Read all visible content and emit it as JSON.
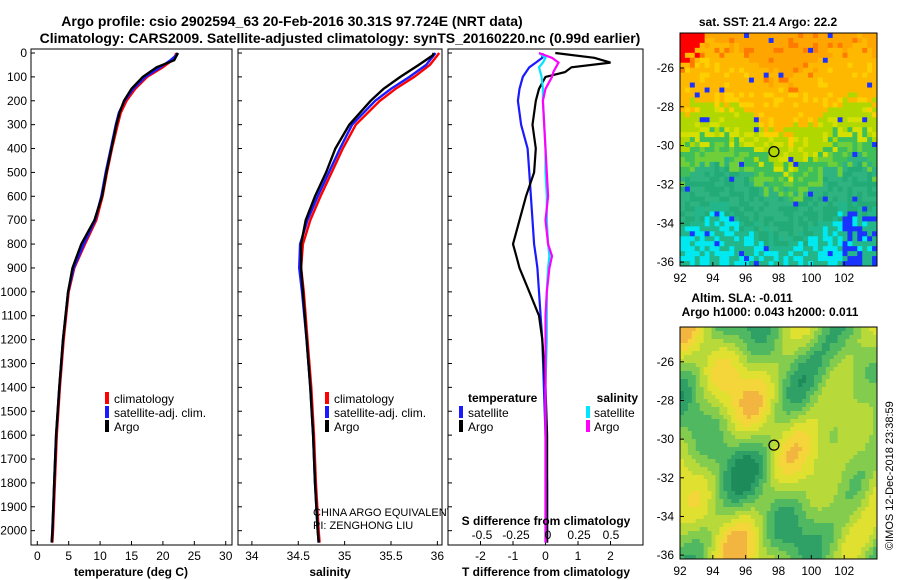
{
  "header": {
    "title_line1": "Argo profile: csio 2902594_63 20-Feb-2016 30.31S 97.724E (NRT data)",
    "title_line2": "Climatology: CARS2009. Satellite-adjusted climatology: synTS_20160220.nc (0.99d earlier)"
  },
  "colors": {
    "climatology": "#ff0000",
    "satellite": "#1a1aff",
    "argo": "#000000",
    "satellite_salinity": "#00e5ff",
    "argo_salinity": "#ff00ff"
  },
  "chart_data": [
    {
      "type": "line",
      "panel": "temperature",
      "xlabel": "temperature (deg C)",
      "ylabel": "",
      "xlim": [
        -1,
        31
      ],
      "ylim": [
        2060,
        0
      ],
      "xticks": [
        "0",
        "5",
        "10",
        "15",
        "20",
        "25",
        "30"
      ],
      "yticks": [
        "0",
        "100",
        "200",
        "300",
        "400",
        "500",
        "600",
        "700",
        "800",
        "900",
        "1000",
        "1100",
        "1200",
        "1300",
        "1400",
        "1500",
        "1600",
        "1700",
        "1800",
        "1900",
        "2000"
      ],
      "legend": [
        "climatology",
        "satellite-adj. clim.",
        "Argo"
      ],
      "depth": [
        0,
        10,
        30,
        60,
        100,
        150,
        200,
        250,
        300,
        400,
        500,
        600,
        700,
        800,
        900,
        1000,
        1200,
        1400,
        1600,
        1800,
        2000,
        2050
      ],
      "series": [
        {
          "name": "climatology",
          "values": [
            22.1,
            22.0,
            21.5,
            20.0,
            17.5,
            15.6,
            14.2,
            13.3,
            12.8,
            11.9,
            11.1,
            10.4,
            9.4,
            7.6,
            5.9,
            5.0,
            4.2,
            3.6,
            3.1,
            2.8,
            2.5,
            2.4
          ]
        },
        {
          "name": "satellite-adj. clim.",
          "values": [
            22.3,
            22.1,
            21.2,
            19.6,
            17.2,
            15.3,
            13.9,
            13.0,
            12.5,
            11.7,
            10.9,
            10.2,
            9.2,
            7.4,
            5.8,
            4.9,
            4.1,
            3.5,
            3.0,
            2.7,
            2.4,
            2.3
          ]
        },
        {
          "name": "Argo",
          "values": [
            22.4,
            22.2,
            21.8,
            19.0,
            16.8,
            15.0,
            13.8,
            13.1,
            12.6,
            11.8,
            11.0,
            10.3,
            9.1,
            7.0,
            5.6,
            4.9,
            4.1,
            3.5,
            3.0,
            2.7,
            2.4,
            2.3
          ]
        }
      ]
    },
    {
      "type": "line",
      "panel": "salinity",
      "xlabel": "salinity",
      "xlim": [
        33.85,
        36.05
      ],
      "ylim": [
        2060,
        0
      ],
      "xticks": [
        "34",
        "34.5",
        "35",
        "35.5",
        "36"
      ],
      "legend": [
        "climatology",
        "satellite-adj. clim.",
        "Argo"
      ],
      "annotation": [
        "CHINA ARGO EQUIVALENT",
        "PI: ZENGHONG LIU"
      ],
      "depth": [
        0,
        10,
        50,
        100,
        150,
        200,
        300,
        400,
        500,
        600,
        700,
        800,
        900,
        1000,
        1200,
        1400,
        1600,
        1800,
        2000,
        2050
      ],
      "series": [
        {
          "name": "climatology",
          "values": [
            36.02,
            36.0,
            35.92,
            35.75,
            35.55,
            35.38,
            35.12,
            34.98,
            34.86,
            34.74,
            34.63,
            34.55,
            34.53,
            34.56,
            34.6,
            34.64,
            34.67,
            34.69,
            34.72,
            34.73
          ]
        },
        {
          "name": "satellite-adj. clim.",
          "values": [
            35.98,
            35.96,
            35.88,
            35.7,
            35.5,
            35.33,
            35.08,
            34.95,
            34.83,
            34.71,
            34.6,
            34.52,
            34.51,
            34.54,
            34.59,
            34.63,
            34.66,
            34.68,
            34.71,
            34.72
          ]
        },
        {
          "name": "Argo",
          "values": [
            35.96,
            35.95,
            35.8,
            35.6,
            35.42,
            35.28,
            35.05,
            34.9,
            34.8,
            34.68,
            34.58,
            34.53,
            34.53,
            34.55,
            34.59,
            34.63,
            34.66,
            34.68,
            34.71,
            34.72
          ]
        }
      ]
    },
    {
      "type": "line",
      "panel": "difference",
      "xlabel": "T difference from climatology",
      "xlabel_top": "S difference from climatology",
      "xlim": [
        -3,
        3
      ],
      "ylim": [
        2060,
        0
      ],
      "xticks": [
        "-2",
        "-1",
        "0",
        "1",
        "2"
      ],
      "s_ticks": [
        "-0.5",
        "-0.25",
        "0",
        "0.25",
        "0.5"
      ],
      "legend_temperature_title": "temperature",
      "legend_salinity_title": "salinity",
      "legend": [
        "satellite",
        "Argo",
        "satellite",
        "Argo"
      ],
      "depth": [
        0,
        20,
        40,
        60,
        80,
        100,
        150,
        200,
        300,
        400,
        500,
        600,
        700,
        800,
        850,
        900,
        1000,
        1100,
        1200,
        1400,
        1600,
        1800,
        2000,
        2050
      ],
      "series": [
        {
          "name": "temperature satellite",
          "values": [
            -0.1,
            -0.1,
            -0.3,
            -0.5,
            -0.6,
            -0.7,
            -0.8,
            -0.85,
            -0.75,
            -0.55,
            -0.5,
            -0.45,
            -0.4,
            -0.35,
            -0.3,
            -0.25,
            -0.2,
            -0.15,
            -0.1,
            -0.05,
            0.0,
            0.05,
            0.05,
            0.05
          ]
        },
        {
          "name": "temperature Argo",
          "values": [
            0.3,
            1.5,
            2.0,
            0.8,
            0.6,
            0.0,
            -0.2,
            -0.3,
            -0.4,
            -0.3,
            -0.35,
            -0.6,
            -0.8,
            -1.0,
            -0.9,
            -0.8,
            -0.5,
            -0.2,
            -0.1,
            0.0,
            0.05,
            0.05,
            0.05,
            0.05
          ]
        },
        {
          "name": "salinity satellite",
          "values": [
            -0.05,
            0.0,
            -0.02,
            -0.05,
            -0.04,
            -0.03,
            -0.02,
            -0.02,
            -0.01,
            0.0,
            0.0,
            0.01,
            0.01,
            0.02,
            0.03,
            0.02,
            0.01,
            0.01,
            0.01,
            0.0,
            0.0,
            0.0,
            0.0,
            0.0
          ]
        },
        {
          "name": "salinity Argo",
          "values": [
            -0.05,
            0.05,
            0.1,
            0.08,
            0.06,
            0.05,
            0.0,
            -0.02,
            -0.01,
            0.0,
            0.01,
            0.02,
            0.0,
            0.02,
            0.05,
            0.03,
            0.01,
            0.0,
            0.0,
            0.0,
            0.0,
            0.0,
            0.0,
            0.0
          ]
        }
      ]
    },
    {
      "type": "heatmap",
      "panel": "sst_map",
      "title": "sat. SST: 21.4 Argo: 22.2",
      "xticks": [
        "92",
        "94",
        "96",
        "98",
        "100",
        "102"
      ],
      "yticks": [
        "-26",
        "-28",
        "-30",
        "-32",
        "-34",
        "-36"
      ],
      "xlim": [
        92,
        104
      ],
      "ylim": [
        -36.2,
        -24.2
      ],
      "marker": [
        97.724,
        -30.31
      ]
    },
    {
      "type": "heatmap",
      "panel": "sla_map",
      "title_line1": "Altim. SLA: -0.011",
      "title_line2": "Argo h1000: 0.043 h2000: 0.011",
      "xticks": [
        "92",
        "94",
        "96",
        "98",
        "100",
        "102"
      ],
      "yticks": [
        "-26",
        "-28",
        "-30",
        "-32",
        "-34",
        "-36"
      ],
      "xlim": [
        92,
        104
      ],
      "ylim": [
        -36.2,
        -24.2
      ],
      "marker": [
        97.724,
        -30.31
      ]
    }
  ],
  "footer": {
    "stamp": "©IMOS 12-Dec-2018 23:38:59"
  }
}
